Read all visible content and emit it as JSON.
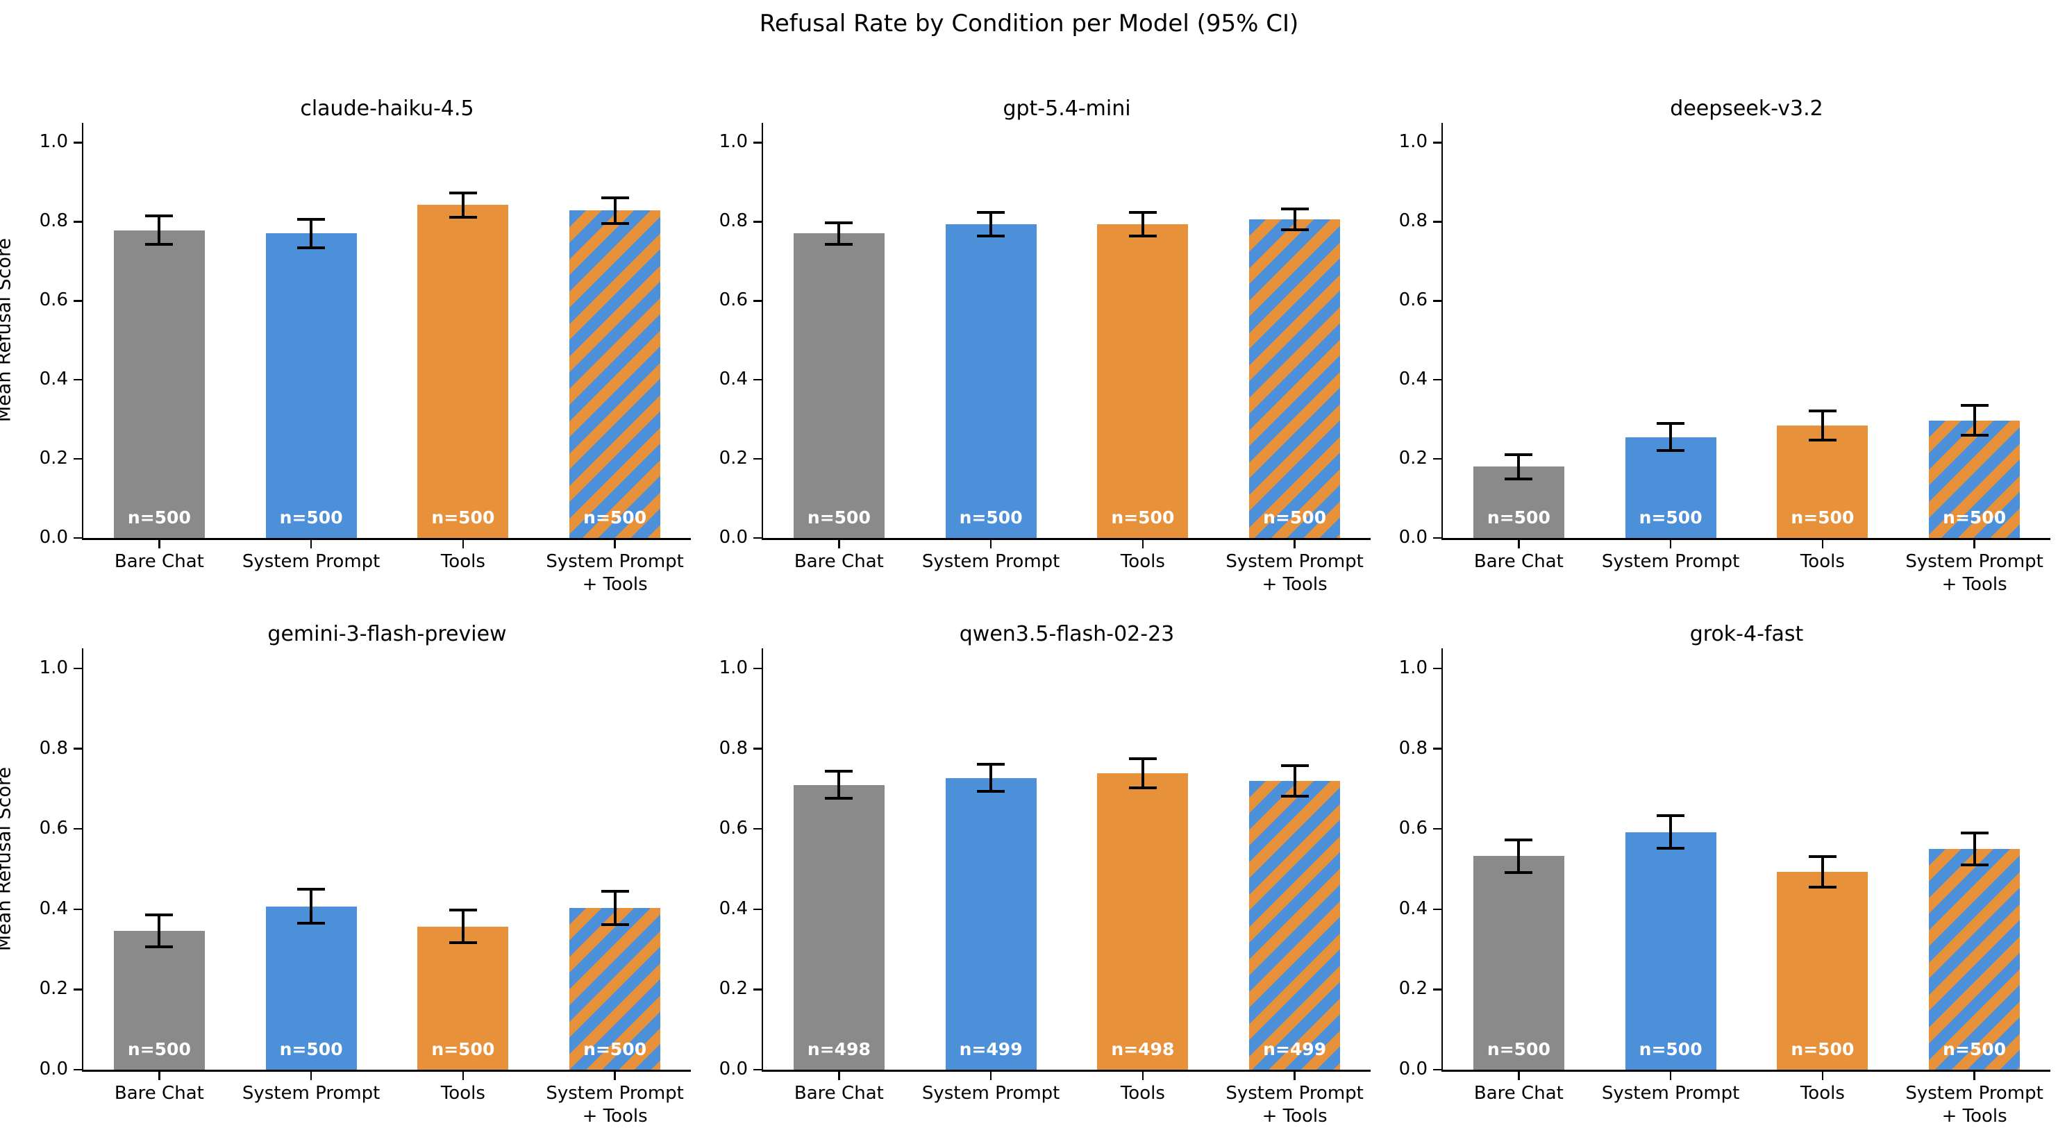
{
  "figure": {
    "title": "Refusal Rate by Condition per Model (95% CI)",
    "ylabel": "Mean Refusal Score",
    "background": "#ffffff"
  },
  "colors": {
    "bare_chat": "#8A8A8A",
    "system_prompt": "#4B90D9",
    "tools": "#E8913B",
    "combo_stripe_blue": "#4B90D9",
    "combo_stripe_orange": "#E8913B",
    "error_bar": "#000000",
    "axis": "#000000",
    "n_label_text": "#FFFFFF"
  },
  "conditions": [
    {
      "key": "bare_chat",
      "lines": [
        "Bare Chat"
      ]
    },
    {
      "key": "system_prompt",
      "lines": [
        "System Prompt"
      ]
    },
    {
      "key": "tools",
      "lines": [
        "Tools"
      ]
    },
    {
      "key": "system_prompt_tools",
      "lines": [
        "System Prompt",
        "+ Tools"
      ]
    }
  ],
  "axis": {
    "ylim": [
      0,
      1.05
    ],
    "yticks": [
      0.0,
      0.2,
      0.4,
      0.6,
      0.8,
      1.0
    ],
    "ytick_labels": [
      "0.0",
      "0.2",
      "0.4",
      "0.6",
      "0.8",
      "1.0"
    ],
    "grid": false
  },
  "chart_data": {
    "type": "bar",
    "title": "Refusal Rate by Condition per Model (95% CI)",
    "xlabel": "",
    "ylabel": "Mean Refusal Score",
    "categories": [
      "Bare Chat",
      "System Prompt",
      "Tools",
      "System Prompt + Tools"
    ],
    "error_bars": "95% CI",
    "legend_position": "none",
    "subplots": [
      {
        "model": "claude-haiku-4.5",
        "values": [
          0.778,
          0.77,
          0.842,
          0.828
        ],
        "ci": [
          0.036,
          0.036,
          0.031,
          0.033
        ],
        "n": [
          "n=500",
          "n=500",
          "n=500",
          "n=500"
        ]
      },
      {
        "model": "gpt-5.4-mini",
        "values": [
          0.77,
          0.793,
          0.793,
          0.806
        ],
        "ci": [
          0.027,
          0.03,
          0.03,
          0.026
        ],
        "n": [
          "n=500",
          "n=500",
          "n=500",
          "n=500"
        ]
      },
      {
        "model": "deepseek-v3.2",
        "values": [
          0.18,
          0.255,
          0.284,
          0.297
        ],
        "ci": [
          0.031,
          0.034,
          0.037,
          0.038
        ],
        "n": [
          "n=500",
          "n=500",
          "n=500",
          "n=500"
        ]
      },
      {
        "model": "gemini-3-flash-preview",
        "values": [
          0.346,
          0.407,
          0.357,
          0.403
        ],
        "ci": [
          0.04,
          0.042,
          0.04,
          0.042
        ],
        "n": [
          "n=500",
          "n=500",
          "n=500",
          "n=500"
        ]
      },
      {
        "model": "qwen3.5-flash-02-23",
        "values": [
          0.71,
          0.727,
          0.739,
          0.719
        ],
        "ci": [
          0.033,
          0.034,
          0.036,
          0.038
        ],
        "n": [
          "n=498",
          "n=499",
          "n=498",
          "n=499"
        ]
      },
      {
        "model": "grok-4-fast",
        "values": [
          0.532,
          0.592,
          0.493,
          0.55
        ],
        "ci": [
          0.04,
          0.041,
          0.038,
          0.04
        ],
        "n": [
          "n=500",
          "n=500",
          "n=500",
          "n=500"
        ]
      }
    ]
  }
}
